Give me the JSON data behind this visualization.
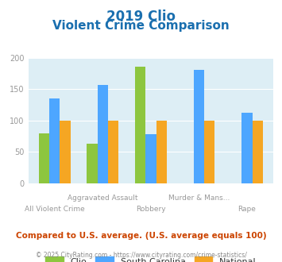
{
  "title_line1": "2019 Clio",
  "title_line2": "Violent Crime Comparison",
  "title_color": "#1a6faf",
  "categories": [
    "All Violent Crime",
    "Aggravated Assault",
    "Robbery",
    "Murder & Mans...",
    "Rape"
  ],
  "categories_top": [
    "",
    "Aggravated Assault",
    "",
    "Murder & Mans...",
    ""
  ],
  "categories_bottom": [
    "All Violent Crime",
    "",
    "Robbery",
    "",
    "Rape"
  ],
  "series": {
    "Clio": [
      80,
      63,
      185,
      0,
      0
    ],
    "South Carolina": [
      135,
      157,
      78,
      180,
      113
    ],
    "National": [
      100,
      100,
      100,
      100,
      100
    ]
  },
  "colors": {
    "Clio": "#8dc63f",
    "South Carolina": "#4da6ff",
    "National": "#f5a623"
  },
  "ylim": [
    0,
    200
  ],
  "yticks": [
    0,
    50,
    100,
    150,
    200
  ],
  "plot_bg_color": "#ddeef5",
  "footer_text": "Compared to U.S. average. (U.S. average equals 100)",
  "footer_color": "#cc4400",
  "copyright_text": "© 2025 CityRating.com - https://www.cityrating.com/crime-statistics/",
  "copyright_color": "#888888",
  "tick_label_color": "#999999",
  "grid_color": "#ffffff"
}
